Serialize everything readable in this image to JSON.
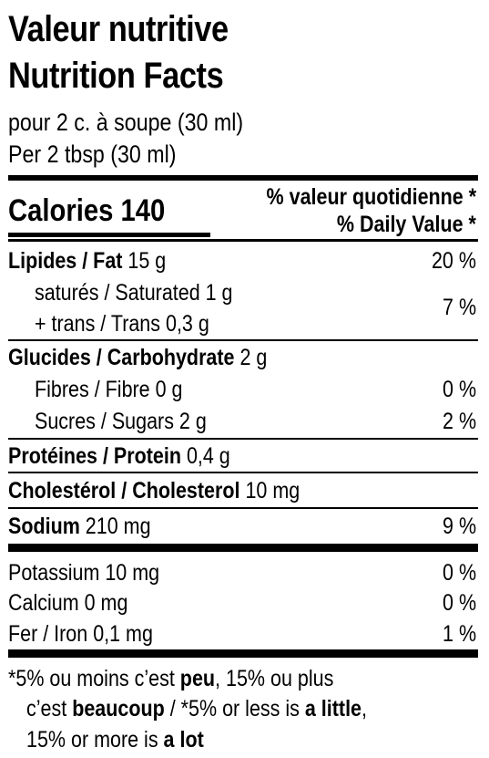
{
  "title_fr": "Valeur nutritive",
  "title_en": "Nutrition Facts",
  "serving_fr": "pour 2 c. à soupe (30 ml)",
  "serving_en": "Per 2 tbsp (30 ml)",
  "calories_label": "Calories 140",
  "dv_header_fr": "% valeur quotidienne *",
  "dv_header_en": "% Daily Value *",
  "rows": {
    "fat": {
      "label": "Lipides / Fat",
      "amount": " 15 g",
      "dv": "20 %"
    },
    "saturated": {
      "label": "saturés / Saturated 1 g"
    },
    "trans": {
      "label": "+ trans / Trans 0,3 g"
    },
    "sat_trans_dv": "7 %",
    "carb": {
      "label": "Glucides / Carbohydrate",
      "amount": " 2 g"
    },
    "fibre": {
      "label": "Fibres / Fibre 0 g",
      "dv": "0 %"
    },
    "sugars": {
      "label": "Sucres / Sugars 2 g",
      "dv": "2 %"
    },
    "protein": {
      "label": "Protéines / Protein",
      "amount": " 0,4 g"
    },
    "cholesterol": {
      "label": "Cholestérol / Cholesterol",
      "amount": " 10 mg"
    },
    "sodium": {
      "label": "Sodium",
      "amount": " 210 mg",
      "dv": "9 %"
    },
    "potassium": {
      "label": "Potassium 10 mg",
      "dv": "0 %"
    },
    "calcium": {
      "label": "Calcium 0 mg",
      "dv": "0 %"
    },
    "iron": {
      "label": "Fer / Iron 0,1 mg",
      "dv": "1 %"
    }
  },
  "footnote": {
    "l1_a": "*5% ou moins c’est ",
    "l1_b": "peu",
    "l1_c": ", 15% ou plus",
    "l2_a": "c’est ",
    "l2_b": "beaucoup",
    "l2_c": " / *5% or less is ",
    "l2_d": "a little",
    "l2_e": ",",
    "l3_a": "15% or more is ",
    "l3_b": "a lot"
  }
}
